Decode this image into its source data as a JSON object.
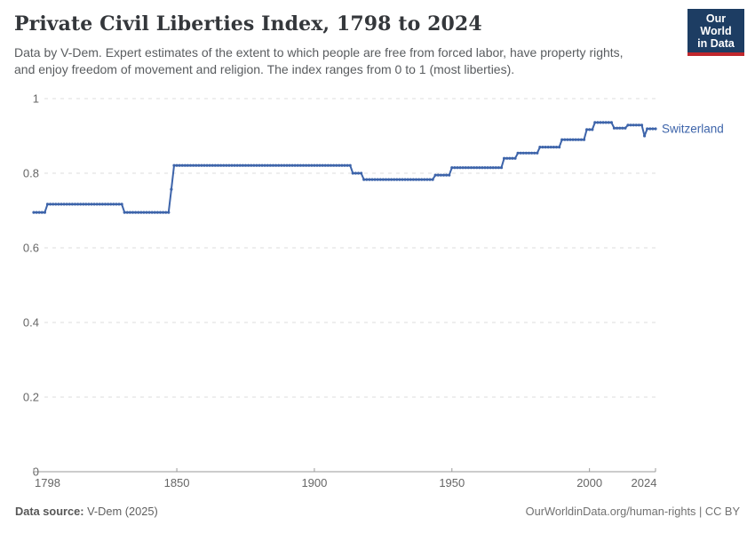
{
  "header": {
    "title": "Private Civil Liberties Index, 1798 to 2024",
    "subtitle": {
      "line1": "Data by V-Dem. Expert estimates of the extent to which people are free from forced labor, have property rights,",
      "line2": "and enjoy freedom of movement and religion. The index ranges from 0 to 1 (most liberties)."
    },
    "logo": {
      "line1": "Our World",
      "line2": "in Data",
      "bg_color": "#1d3d63",
      "accent_color": "#c0272d"
    }
  },
  "chart_data": {
    "type": "line",
    "title": "Private Civil Liberties Index, 1798 to 2024",
    "xlabel": "",
    "ylabel": "",
    "xlim": [
      1798,
      2024
    ],
    "ylim": [
      0,
      1
    ],
    "x_ticks": [
      1798,
      1850,
      1900,
      1950,
      2000,
      2024
    ],
    "y_ticks": [
      0,
      0.2,
      0.4,
      0.6,
      0.8,
      1
    ],
    "grid": "horizontal-dashed",
    "grid_color": "#dddddd",
    "axis_color": "#9a9a9a",
    "tick_label_color": "#666666",
    "legend_position": "end-of-line-label",
    "series": [
      {
        "name": "Switzerland",
        "color": "#3d64aa",
        "step_points": [
          [
            1798,
            0.695
          ],
          [
            1802,
            0.695
          ],
          [
            1803,
            0.717
          ],
          [
            1830,
            0.717
          ],
          [
            1831,
            0.695
          ],
          [
            1847,
            0.695
          ],
          [
            1848,
            0.757
          ],
          [
            1849,
            0.821
          ],
          [
            1913,
            0.821
          ],
          [
            1914,
            0.8
          ],
          [
            1917,
            0.8
          ],
          [
            1918,
            0.783
          ],
          [
            1943,
            0.783
          ],
          [
            1944,
            0.795
          ],
          [
            1949,
            0.795
          ],
          [
            1950,
            0.815
          ],
          [
            1968,
            0.815
          ],
          [
            1969,
            0.84
          ],
          [
            1973,
            0.84
          ],
          [
            1974,
            0.854
          ],
          [
            1981,
            0.854
          ],
          [
            1982,
            0.87
          ],
          [
            1989,
            0.87
          ],
          [
            1990,
            0.89
          ],
          [
            1998,
            0.89
          ],
          [
            1999,
            0.917
          ],
          [
            2001,
            0.917
          ],
          [
            2002,
            0.936
          ],
          [
            2008,
            0.936
          ],
          [
            2009,
            0.921
          ],
          [
            2013,
            0.921
          ],
          [
            2014,
            0.929
          ],
          [
            2019,
            0.929
          ],
          [
            2020,
            0.9
          ],
          [
            2021,
            0.919
          ],
          [
            2024,
            0.919
          ]
        ]
      }
    ]
  },
  "footer": {
    "source_label": "Data source:",
    "source_value": " V-Dem (2025)",
    "credit": "OurWorldinData.org/human-rights | CC BY"
  }
}
